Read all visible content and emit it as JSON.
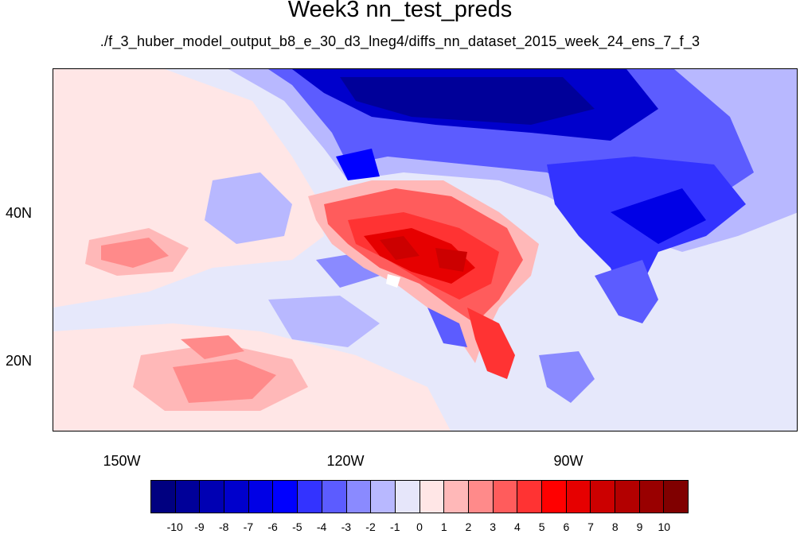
{
  "title": "Week3 nn_test_preds",
  "subtitle": "./f_3_huber_model_output_b8_e_30_d3_lneg4/diffs_nn_dataset_2015_week_24_ens_7_f_3",
  "lon_labels": [
    "150W",
    "120W",
    "90W"
  ],
  "lat_labels": [
    "40N",
    "20N"
  ],
  "colorbar": {
    "labels": [
      "-10",
      "-9",
      "-8",
      "-7",
      "-6",
      "-5",
      "-4",
      "-3",
      "-2",
      "-1",
      "0",
      "1",
      "2",
      "3",
      "4",
      "5",
      "6",
      "7",
      "8",
      "9",
      "10"
    ],
    "colors": [
      "#000080",
      "#000099",
      "#0000b3",
      "#0000cc",
      "#0000e6",
      "#0000ff",
      "#3333ff",
      "#5c5cff",
      "#8a8aff",
      "#b8b8ff",
      "#e6e6fa",
      "#ffe6e6",
      "#ffb8b8",
      "#ff8a8a",
      "#ff5c5c",
      "#ff3333",
      "#ff0000",
      "#e60000",
      "#cc0000",
      "#b30000",
      "#990000",
      "#800000"
    ]
  }
}
